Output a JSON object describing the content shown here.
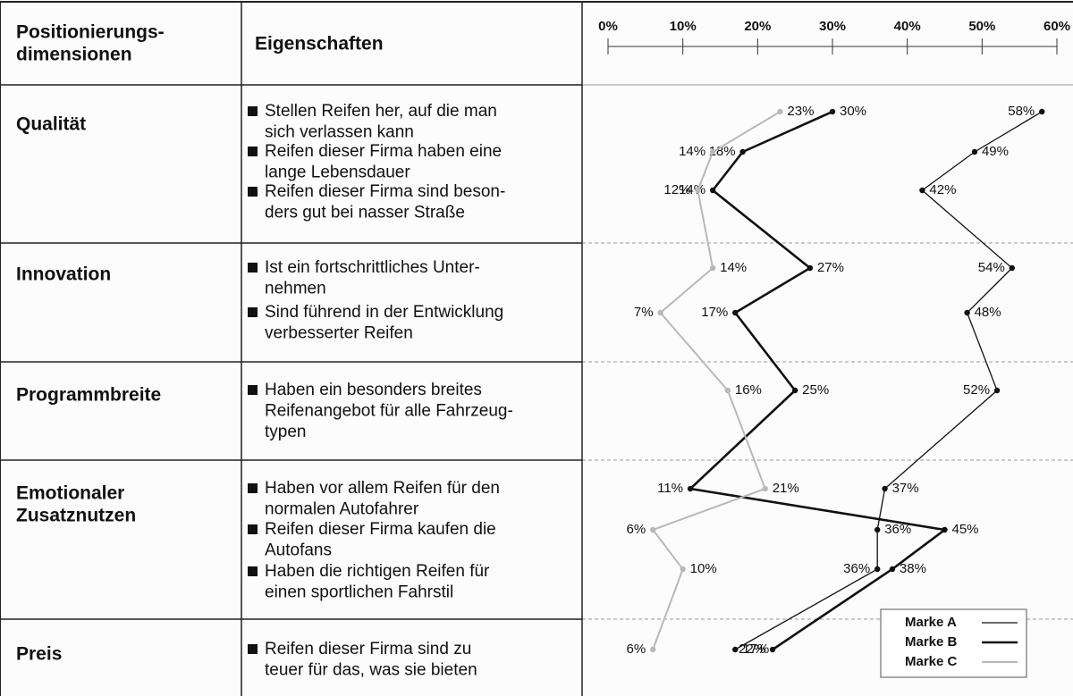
{
  "chart_data": {
    "type": "profile",
    "headers": [
      [
        "Positionierungs-",
        "dimensionen"
      ],
      [
        "Eigenschaften"
      ]
    ],
    "dimensions": [
      {
        "name": [
          "Qualität"
        ],
        "items": [
          [
            "Stellen Reifen her, auf die man",
            "sich verlassen kann"
          ],
          [
            "Reifen dieser Firma haben eine",
            "lange Lebensdauer"
          ],
          [
            "Reifen dieser Firma sind beson-",
            "ders gut bei nasser Straße"
          ]
        ]
      },
      {
        "name": [
          "Innovation"
        ],
        "items": [
          [
            "Ist ein fortschrittliches Unter-",
            "nehmen"
          ],
          [
            "Sind führend in der Entwicklung",
            "verbesserter Reifen"
          ]
        ]
      },
      {
        "name": [
          "Programmbreite"
        ],
        "items": [
          [
            "Haben ein besonders breites",
            "Reifenangebot für alle Fahrzeug-",
            "typen"
          ]
        ]
      },
      {
        "name": [
          "Emotionaler",
          "Zusatznutzen"
        ],
        "items": [
          [
            "Haben vor allem Reifen für den",
            "normalen Autofahrer"
          ],
          [
            "Reifen dieser Firma kaufen die",
            "Autofans"
          ],
          [
            "Haben die richtigen Reifen für",
            "einen sportlichen Fahrstil"
          ]
        ]
      },
      {
        "name": [
          "Preis"
        ],
        "items": [
          [
            "Reifen dieser Firma sind zu",
            "teuer für das, was sie bieten"
          ]
        ]
      }
    ],
    "xlim": [
      0,
      60
    ],
    "xticks": [
      {
        "value": 0,
        "label": "0%"
      },
      {
        "value": 10,
        "label": "10%"
      },
      {
        "value": 20,
        "label": "20%"
      },
      {
        "value": 30,
        "label": "30%"
      },
      {
        "value": 40,
        "label": "40%"
      },
      {
        "value": 50,
        "label": "50%"
      },
      {
        "value": 60,
        "label": "60%"
      }
    ],
    "series": [
      {
        "name": "Marke A",
        "color": "#111111",
        "line_width": 1.3,
        "values": [
          58,
          49,
          42,
          54,
          48,
          52,
          37,
          36,
          36,
          17
        ],
        "value_labels": [
          "58%",
          "49%",
          "42%",
          "54%",
          "48%",
          "52%",
          "37%",
          "36%",
          "36%",
          "17%"
        ]
      },
      {
        "name": "Marke B",
        "color": "#111111",
        "line_width": 2.6,
        "values": [
          30,
          18,
          14,
          27,
          17,
          25,
          11,
          45,
          38,
          22
        ],
        "value_labels": [
          "30%",
          "18%",
          "14%",
          "27%",
          "17%",
          "25%",
          "11%",
          "45%",
          "38%",
          "22%"
        ]
      },
      {
        "name": "Marke C",
        "color": "#b8b8b8",
        "line_width": 2,
        "values": [
          23,
          14,
          12,
          14,
          7,
          16,
          21,
          6,
          10,
          6
        ],
        "value_labels": [
          "23%",
          "14%",
          "12%",
          "14%",
          "7%",
          "16%",
          "21%",
          "6%",
          "10%",
          "6%"
        ]
      }
    ]
  }
}
